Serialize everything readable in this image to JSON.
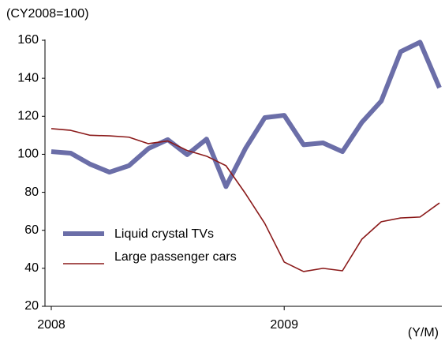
{
  "chart_data": {
    "type": "line",
    "y_label": "(CY2008=100)",
    "x_label": "(Y/M)",
    "categories": [
      "2008",
      null,
      null,
      null,
      null,
      null,
      null,
      null,
      null,
      null,
      null,
      null,
      "2009",
      null,
      null,
      null,
      null,
      null,
      null,
      null,
      null
    ],
    "ylim": [
      20,
      160
    ],
    "yticks": [
      20,
      40,
      60,
      80,
      100,
      120,
      140,
      160
    ],
    "grid": false,
    "legend": "lower left",
    "series": [
      {
        "name": "Liquid crystal TVs",
        "color": "#6b6ea8",
        "values": [
          101.4,
          100.6,
          94.8,
          90.6,
          94,
          103,
          107.7,
          99.8,
          108,
          83,
          103,
          119.3,
          120.5,
          105,
          106,
          101.4,
          116.8,
          128,
          154,
          159,
          135
        ]
      },
      {
        "name": "Large passenger cars",
        "color": "#8b1a1a",
        "values": [
          113.5,
          112.6,
          110,
          109.7,
          109,
          105.6,
          107,
          102,
          99,
          94,
          79.4,
          63.6,
          43.3,
          38.3,
          40,
          38.7,
          55.3,
          64.5,
          66.5,
          67,
          74.4
        ]
      }
    ]
  }
}
